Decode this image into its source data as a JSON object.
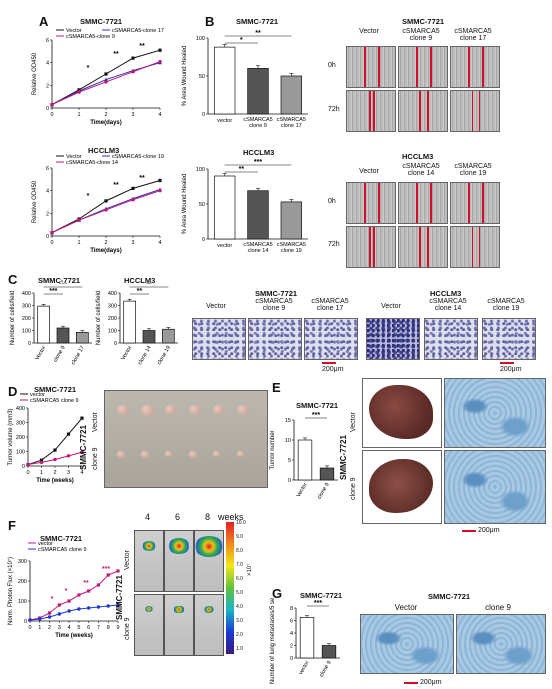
{
  "panels": {
    "A": {
      "label": "A",
      "top": {
        "title": "SMMC-7721",
        "legend": [
          "Vector",
          "cSMARCA5-clone 17",
          "cSMARCA5-clone 9"
        ],
        "ylabel": "Relative OD450",
        "xlabel": "Time(days)",
        "yticks": [
          "0",
          "2",
          "4",
          "6"
        ],
        "xticks": [
          "0",
          "1",
          "2",
          "3",
          "4"
        ]
      },
      "bottom": {
        "title": "HCCLM3",
        "legend": [
          "Vector",
          "cSMARCA5-clone 19",
          "cSMARCA5-clone 14"
        ],
        "ylabel": "Relative OD450",
        "xlabel": "Time(days)",
        "yticks": [
          "0",
          "2",
          "4",
          "6"
        ],
        "xticks": [
          "0",
          "1",
          "2",
          "3",
          "4"
        ]
      }
    },
    "B": {
      "label": "B",
      "top": {
        "title": "SMMC-7721",
        "ylabel": "% Area Wound Healed",
        "yticks": [
          "0",
          "50",
          "100"
        ],
        "cats": [
          "vector",
          "cSMARCA5 clone 9",
          "cSMARCA5 clone 17"
        ],
        "sig": [
          "*",
          "**"
        ],
        "img_title": "SMMC-7721",
        "img_cols": [
          "Vector",
          "cSMARCA5 clone 9",
          "cSMARCA5 clone 17"
        ],
        "img_rows": [
          "0h",
          "72h"
        ]
      },
      "bottom": {
        "title": "HCCLM3",
        "ylabel": "% Area Wound Healed",
        "yticks": [
          "0",
          "50",
          "100"
        ],
        "cats": [
          "vector",
          "cSMARCA5 clone 14",
          "cSMARCA5 clone 19"
        ],
        "sig": [
          "**",
          "***"
        ],
        "img_title": "HCCLM3",
        "img_cols": [
          "Vector",
          "cSMARCA5 clone 14",
          "cSMARCA5 clone 19"
        ],
        "img_rows": [
          "0h",
          "72h"
        ]
      }
    },
    "C": {
      "label": "C",
      "left": {
        "title": "SMMC-7721",
        "ylabel": "Number of cells/field",
        "yticks": [
          "0",
          "100",
          "200",
          "300",
          "400"
        ],
        "cats": [
          "Vector",
          "clone 9",
          "clone 17"
        ],
        "sig": [
          "***",
          "***"
        ]
      },
      "mid": {
        "title": "HCCLM3",
        "ylabel": "Number of cells/field",
        "yticks": [
          "0",
          "100",
          "200",
          "300",
          "400"
        ],
        "cats": [
          "Vector",
          "clone 14",
          "clone 19"
        ],
        "sig": [
          "**",
          "**"
        ]
      },
      "img1_title": "SMMC-7721",
      "img1_cols": [
        "Vector",
        "cSMARCA5 clone 9",
        "cSMARCA5 clone 17"
      ],
      "img2_title": "HCCLM3",
      "img2_cols": [
        "Vector",
        "cSMARCA5 clone 14",
        "cSMARCA5 clone 19"
      ],
      "scale": "200μm"
    },
    "D": {
      "label": "D",
      "title": "SMMC-7721",
      "legend": [
        "vector",
        "cSMARCA5 clone 9"
      ],
      "ylabel": "Tumor volume (mm3)",
      "xlabel": "Time (weeks)",
      "yticks": [
        "0",
        "100",
        "200",
        "300",
        "400"
      ],
      "xticks": [
        "0",
        "1",
        "2",
        "3",
        "4"
      ],
      "row_title": "SMMC-7721",
      "rows": [
        "Vector",
        "clone 9"
      ]
    },
    "E": {
      "label": "E",
      "title": "SMMC-7721",
      "ylabel": "Tumor number",
      "yticks": [
        "0",
        "5",
        "10",
        "15"
      ],
      "cats": [
        "Vector",
        "clone 9"
      ],
      "sig": "***",
      "row_title": "SMMC-7721",
      "rows": [
        "Vector",
        "clone 9"
      ],
      "scale": "200μm"
    },
    "F": {
      "label": "F",
      "title": "SMMC-7721",
      "legend": [
        "vector",
        "cSMARCA5 clone 9"
      ],
      "ylabel": "Norm. Photon Flux (×10⁷)",
      "xlabel": "Time (weeks)",
      "yticks": [
        "0",
        "100",
        "200",
        "300"
      ],
      "xticks": [
        "0",
        "1",
        "2",
        "3",
        "4",
        "5",
        "6",
        "7",
        "8",
        "9"
      ],
      "cols": [
        "4",
        "6",
        "8"
      ],
      "weeks": "weeks",
      "row_title": "SMMC-7721",
      "rows": [
        "Vector",
        "clone 9"
      ],
      "colorbar_ticks": [
        "10.0",
        "9.0",
        "8.0",
        "7.0",
        "6.0",
        "5.0",
        "4.0",
        "3.0",
        "2.0",
        "1.0"
      ],
      "colorbar_unit": "×10⁷"
    },
    "G": {
      "label": "G",
      "title": "SMMC-7721",
      "ylabel": "Number of lung metastases/5 sections",
      "yticks": [
        "0",
        "2",
        "4",
        "6",
        "8"
      ],
      "cats": [
        "vector",
        "clone 9"
      ],
      "sig": "***",
      "img_title": "SMMC-7721",
      "img_cols": [
        "Vector",
        "clone 9"
      ],
      "scale": "200μm"
    }
  },
  "chart_data": [
    {
      "type": "line",
      "panel": "A-top",
      "x": [
        0,
        1,
        2,
        3,
        4
      ],
      "series": [
        {
          "name": "Vector",
          "values": [
            0.3,
            1.6,
            3.0,
            4.4,
            5.1
          ]
        },
        {
          "name": "cSMARCA5-clone 17",
          "values": [
            0.3,
            1.5,
            2.5,
            3.3,
            4.0
          ]
        },
        {
          "name": "cSMARCA5-clone 9",
          "values": [
            0.3,
            1.4,
            2.3,
            3.2,
            4.1
          ]
        }
      ],
      "ylim": [
        0,
        6
      ]
    },
    {
      "type": "line",
      "panel": "A-bottom",
      "x": [
        0,
        1,
        2,
        3,
        4
      ],
      "series": [
        {
          "name": "Vector",
          "values": [
            0.3,
            1.5,
            3.1,
            4.2,
            4.9
          ]
        },
        {
          "name": "cSMARCA5-clone 19",
          "values": [
            0.3,
            1.4,
            2.4,
            3.3,
            4.1
          ]
        },
        {
          "name": "cSMARCA5-clone 14",
          "values": [
            0.3,
            1.4,
            2.3,
            3.2,
            4.0
          ]
        }
      ],
      "ylim": [
        0,
        6
      ]
    },
    {
      "type": "bar",
      "panel": "B-top",
      "categories": [
        "vector",
        "cSMARCA5 clone 9",
        "cSMARCA5 clone 17"
      ],
      "values": [
        88,
        60,
        50
      ],
      "ylim": [
        0,
        100
      ]
    },
    {
      "type": "bar",
      "panel": "B-bottom",
      "categories": [
        "vector",
        "cSMARCA5 clone 14",
        "cSMARCA5 clone 19"
      ],
      "values": [
        90,
        69,
        53
      ],
      "ylim": [
        0,
        100
      ]
    },
    {
      "type": "bar",
      "panel": "C-left",
      "categories": [
        "Vector",
        "clone 9",
        "clone 17"
      ],
      "values": [
        295,
        120,
        85
      ],
      "ylim": [
        0,
        400
      ]
    },
    {
      "type": "bar",
      "panel": "C-mid",
      "categories": [
        "Vector",
        "clone 14",
        "clone 19"
      ],
      "values": [
        335,
        100,
        110
      ],
      "ylim": [
        0,
        400
      ]
    },
    {
      "type": "line",
      "panel": "D",
      "x": [
        0,
        1,
        2,
        3,
        4
      ],
      "series": [
        {
          "name": "vector",
          "values": [
            10,
            40,
            110,
            220,
            330
          ]
        },
        {
          "name": "cSMARCA5 clone 9",
          "values": [
            10,
            25,
            45,
            70,
            95
          ]
        }
      ],
      "ylim": [
        0,
        400
      ]
    },
    {
      "type": "bar",
      "panel": "E",
      "categories": [
        "Vector",
        "clone 9"
      ],
      "values": [
        10,
        3
      ],
      "ylim": [
        0,
        15
      ]
    },
    {
      "type": "line",
      "panel": "F",
      "x": [
        0,
        1,
        2,
        3,
        4,
        5,
        6,
        7,
        8,
        9
      ],
      "series": [
        {
          "name": "vector",
          "values": [
            5,
            15,
            40,
            80,
            100,
            130,
            150,
            180,
            230,
            250
          ]
        },
        {
          "name": "cSMARCA5 clone 9",
          "values": [
            5,
            10,
            20,
            35,
            50,
            60,
            65,
            70,
            75,
            80
          ]
        }
      ],
      "ylim": [
        0,
        300
      ]
    },
    {
      "type": "bar",
      "panel": "G",
      "categories": [
        "vector",
        "clone 9"
      ],
      "values": [
        6.5,
        2
      ],
      "ylim": [
        0,
        8
      ]
    }
  ]
}
